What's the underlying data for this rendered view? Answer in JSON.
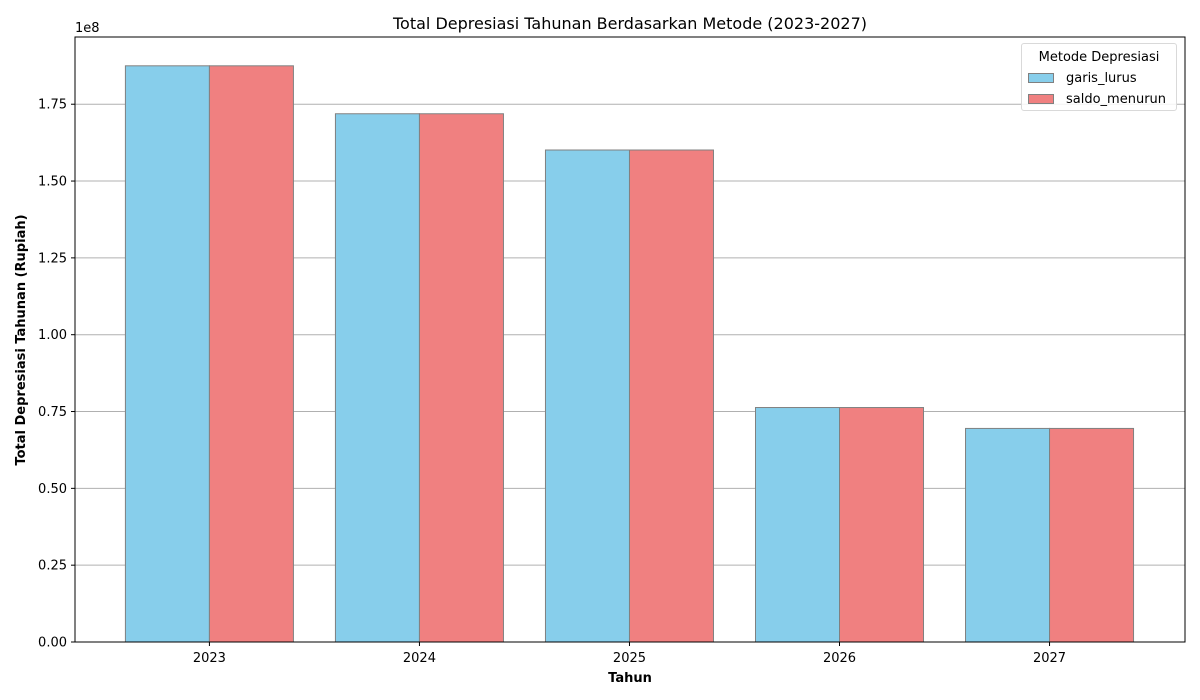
{
  "chart_data": {
    "type": "bar",
    "title": "Total Depresiasi Tahunan Berdasarkan Metode (2023-2027)",
    "xlabel": "Tahun",
    "ylabel": "Total Depresiasi Tahunan (Rupiah)",
    "y_offset_text": "1e8",
    "categories": [
      "2023",
      "2024",
      "2025",
      "2026",
      "2027"
    ],
    "series": [
      {
        "name": "garis_lurus",
        "color": "#87ceeb",
        "values": [
          187500000,
          171900000,
          160100000,
          76300000,
          69500000
        ]
      },
      {
        "name": "saldo_menurun",
        "color": "#f08080",
        "values": [
          187500000,
          171900000,
          160100000,
          76300000,
          69500000
        ]
      }
    ],
    "ylim": [
      0,
      196875000
    ],
    "yticks": [
      0,
      25000000,
      50000000,
      75000000,
      100000000,
      125000000,
      150000000,
      175000000
    ],
    "ytick_labels": [
      "0.00",
      "0.25",
      "0.50",
      "0.75",
      "1.00",
      "1.25",
      "1.50",
      "1.75"
    ],
    "grid": "horizontal",
    "legend": {
      "title": "Metode Depresiasi",
      "position": "top-right"
    },
    "bar_edge_color": "#808080"
  }
}
